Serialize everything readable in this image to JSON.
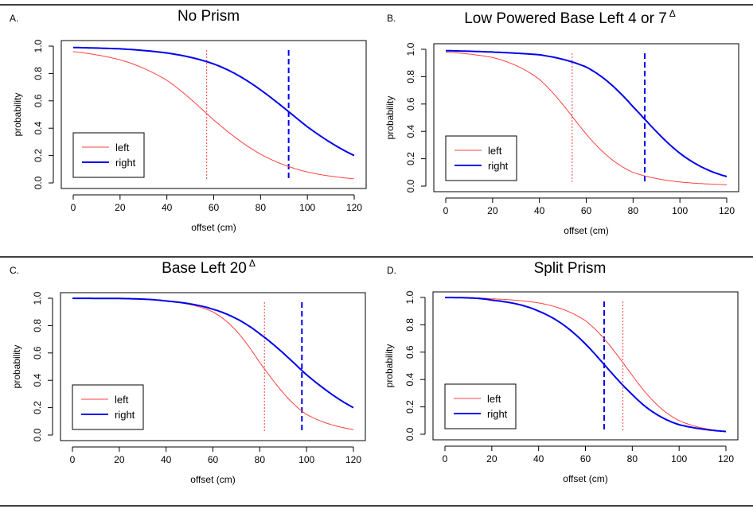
{
  "chart_data": [
    {
      "type": "line",
      "panel_letter": "A.",
      "title": "No Prism",
      "title_superscript": "",
      "xlabel": "offset (cm)",
      "ylabel": "probability",
      "xlim": [
        0,
        120
      ],
      "ylim": [
        0,
        1
      ],
      "x_ticks": [
        "0",
        "20",
        "40",
        "60",
        "80",
        "100",
        "120"
      ],
      "y_ticks": [
        "0.0",
        "0.2",
        "0.4",
        "0.6",
        "0.8",
        "1.0"
      ],
      "legend_position": "bottom-left",
      "series": [
        {
          "name": "left",
          "color": "#ff4040",
          "line_width": "thin",
          "x": [
            0,
            20,
            40,
            60,
            80,
            100,
            120
          ],
          "y": [
            0.96,
            0.9,
            0.75,
            0.46,
            0.21,
            0.08,
            0.03
          ],
          "marker_x": 57,
          "marker_style": "dotted"
        },
        {
          "name": "right",
          "color": "#0000ee",
          "line_width": "thick",
          "x": [
            0,
            20,
            40,
            60,
            80,
            100,
            120
          ],
          "y": [
            0.99,
            0.98,
            0.95,
            0.87,
            0.68,
            0.41,
            0.2
          ],
          "marker_x": 92,
          "marker_style": "dashed"
        }
      ]
    },
    {
      "type": "line",
      "panel_letter": "B.",
      "title": "Low Powered Base Left 4 or 7",
      "title_superscript": "Δ",
      "xlabel": "offset (cm)",
      "ylabel": "probability",
      "xlim": [
        0,
        120
      ],
      "ylim": [
        0,
        1
      ],
      "x_ticks": [
        "0",
        "20",
        "40",
        "60",
        "80",
        "100",
        "120"
      ],
      "y_ticks": [
        "0.0",
        "0.2",
        "0.4",
        "0.6",
        "0.8",
        "1.0"
      ],
      "legend_position": "bottom-left",
      "series": [
        {
          "name": "left",
          "color": "#ff4040",
          "line_width": "thin",
          "x": [
            0,
            20,
            40,
            60,
            80,
            100,
            120
          ],
          "y": [
            0.98,
            0.94,
            0.78,
            0.38,
            0.1,
            0.03,
            0.01
          ],
          "marker_x": 54,
          "marker_style": "dotted"
        },
        {
          "name": "right",
          "color": "#0000ee",
          "line_width": "thick",
          "x": [
            0,
            20,
            40,
            60,
            80,
            100,
            120
          ],
          "y": [
            0.99,
            0.98,
            0.96,
            0.87,
            0.58,
            0.24,
            0.07
          ],
          "marker_x": 85,
          "marker_style": "dashed"
        }
      ]
    },
    {
      "type": "line",
      "panel_letter": "C.",
      "title": "Base Left 20",
      "title_superscript": "Δ",
      "xlabel": "offset (cm)",
      "ylabel": "probability",
      "xlim": [
        0,
        120
      ],
      "ylim": [
        0,
        1
      ],
      "x_ticks": [
        "0",
        "20",
        "40",
        "60",
        "80",
        "100",
        "120"
      ],
      "y_ticks": [
        "0.0",
        "0.2",
        "0.4",
        "0.6",
        "0.8",
        "1.0"
      ],
      "legend_position": "bottom-left",
      "series": [
        {
          "name": "left",
          "color": "#ff4040",
          "line_width": "thin",
          "x": [
            0,
            20,
            40,
            60,
            80,
            100,
            120
          ],
          "y": [
            1.0,
            0.998,
            0.98,
            0.9,
            0.53,
            0.15,
            0.04
          ],
          "marker_x": 82,
          "marker_style": "dotted"
        },
        {
          "name": "right",
          "color": "#0000ee",
          "line_width": "thick",
          "x": [
            0,
            20,
            40,
            60,
            80,
            100,
            120
          ],
          "y": [
            1.0,
            0.998,
            0.98,
            0.92,
            0.74,
            0.44,
            0.2
          ],
          "marker_x": 98,
          "marker_style": "dashed"
        }
      ]
    },
    {
      "type": "line",
      "panel_letter": "D.",
      "title": "Split Prism",
      "title_superscript": "",
      "xlabel": "offset (cm)",
      "ylabel": "probability",
      "xlim": [
        0,
        120
      ],
      "ylim": [
        0,
        1
      ],
      "x_ticks": [
        "0",
        "20",
        "40",
        "60",
        "80",
        "100",
        "120"
      ],
      "y_ticks": [
        "0.0",
        "0.2",
        "0.4",
        "0.6",
        "0.8",
        "1.0"
      ],
      "legend_position": "bottom-left",
      "series": [
        {
          "name": "left",
          "color": "#ff4040",
          "line_width": "thin",
          "x": [
            0,
            20,
            40,
            60,
            80,
            100,
            120
          ],
          "y": [
            1.0,
            0.99,
            0.96,
            0.83,
            0.43,
            0.1,
            0.02
          ],
          "marker_x": 76,
          "marker_style": "dotted"
        },
        {
          "name": "right",
          "color": "#0000ee",
          "line_width": "thick",
          "x": [
            0,
            20,
            40,
            60,
            80,
            100,
            120
          ],
          "y": [
            1.0,
            0.98,
            0.9,
            0.66,
            0.29,
            0.07,
            0.02
          ],
          "marker_x": 68,
          "marker_style": "dashed"
        }
      ]
    }
  ]
}
